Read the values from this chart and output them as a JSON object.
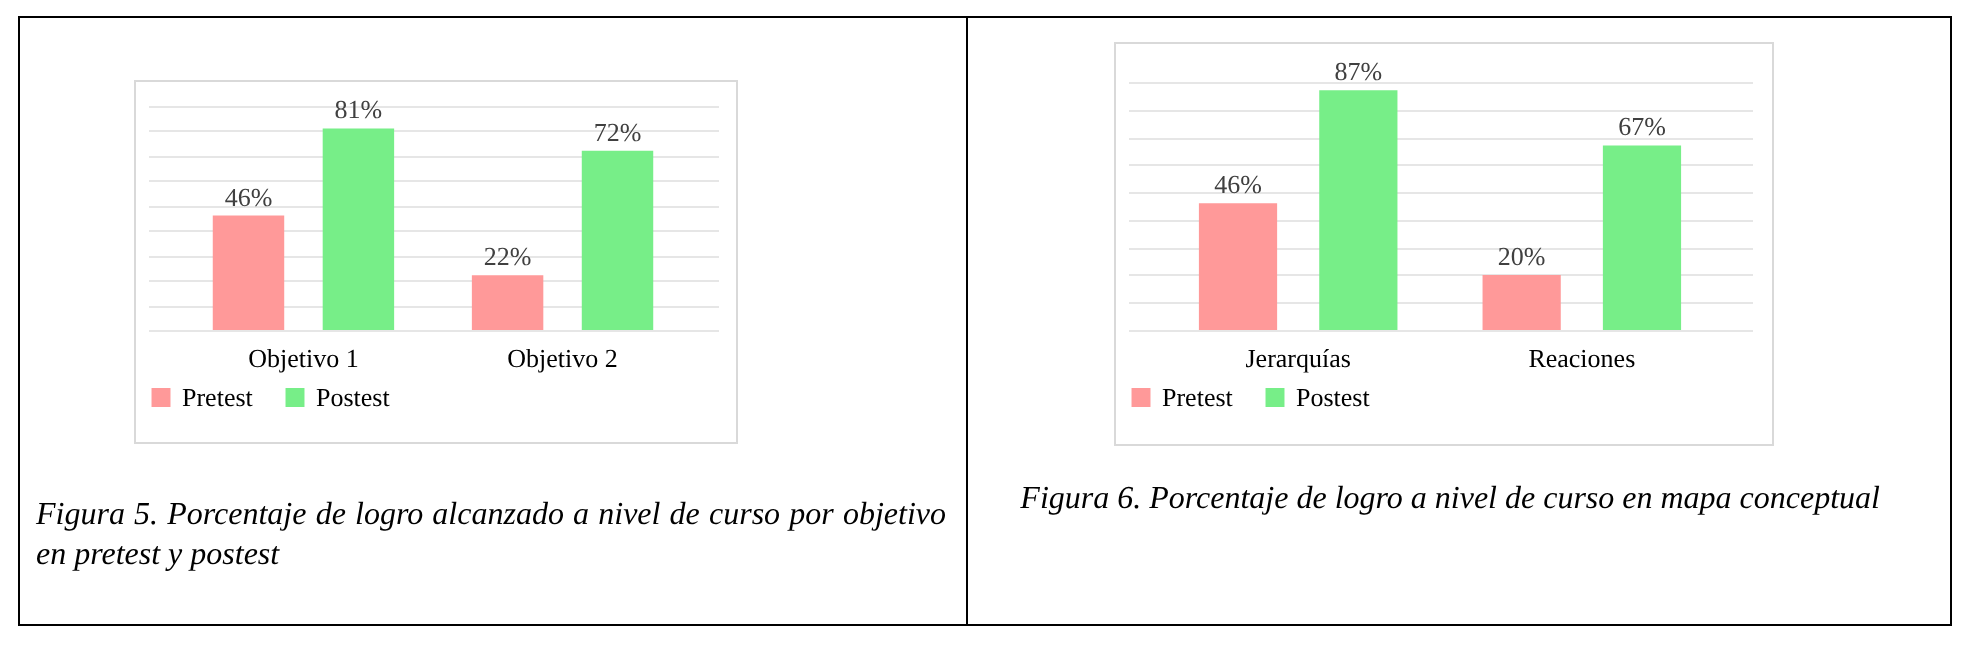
{
  "chart_data": [
    {
      "type": "bar",
      "categories": [
        "Objetivo 1",
        "Objetivo 2"
      ],
      "series": [
        {
          "name": "Pretest",
          "color": "#ff9999",
          "values": [
            46,
            22
          ],
          "value_labels": [
            "46%",
            "22%"
          ]
        },
        {
          "name": "Postest",
          "color": "#77ee88",
          "values": [
            81,
            72
          ],
          "value_labels": [
            "81%",
            "72%"
          ]
        }
      ],
      "tick_labels": "x",
      "grid": "y",
      "legend": "bottom",
      "annotations": [
        "Figura 5. Porcentaje de logro alcanzado a nivel de curso por objetivo en pretest y postest"
      ]
    },
    {
      "type": "bar",
      "categories": [
        "Jerarquías",
        "Reaciones"
      ],
      "series": [
        {
          "name": "Pretest",
          "color": "#ff9999",
          "values": [
            46,
            20
          ],
          "value_labels": [
            "46%",
            "20%"
          ]
        },
        {
          "name": "Postest",
          "color": "#77ee88",
          "values": [
            87,
            67
          ],
          "value_labels": [
            "87%",
            "67%"
          ]
        }
      ],
      "tick_labels": "x",
      "grid": "y",
      "legend": "bottom",
      "annotations": [
        "Figura 6. Porcentaje de logro a nivel de curso en mapa conceptual"
      ]
    }
  ]
}
